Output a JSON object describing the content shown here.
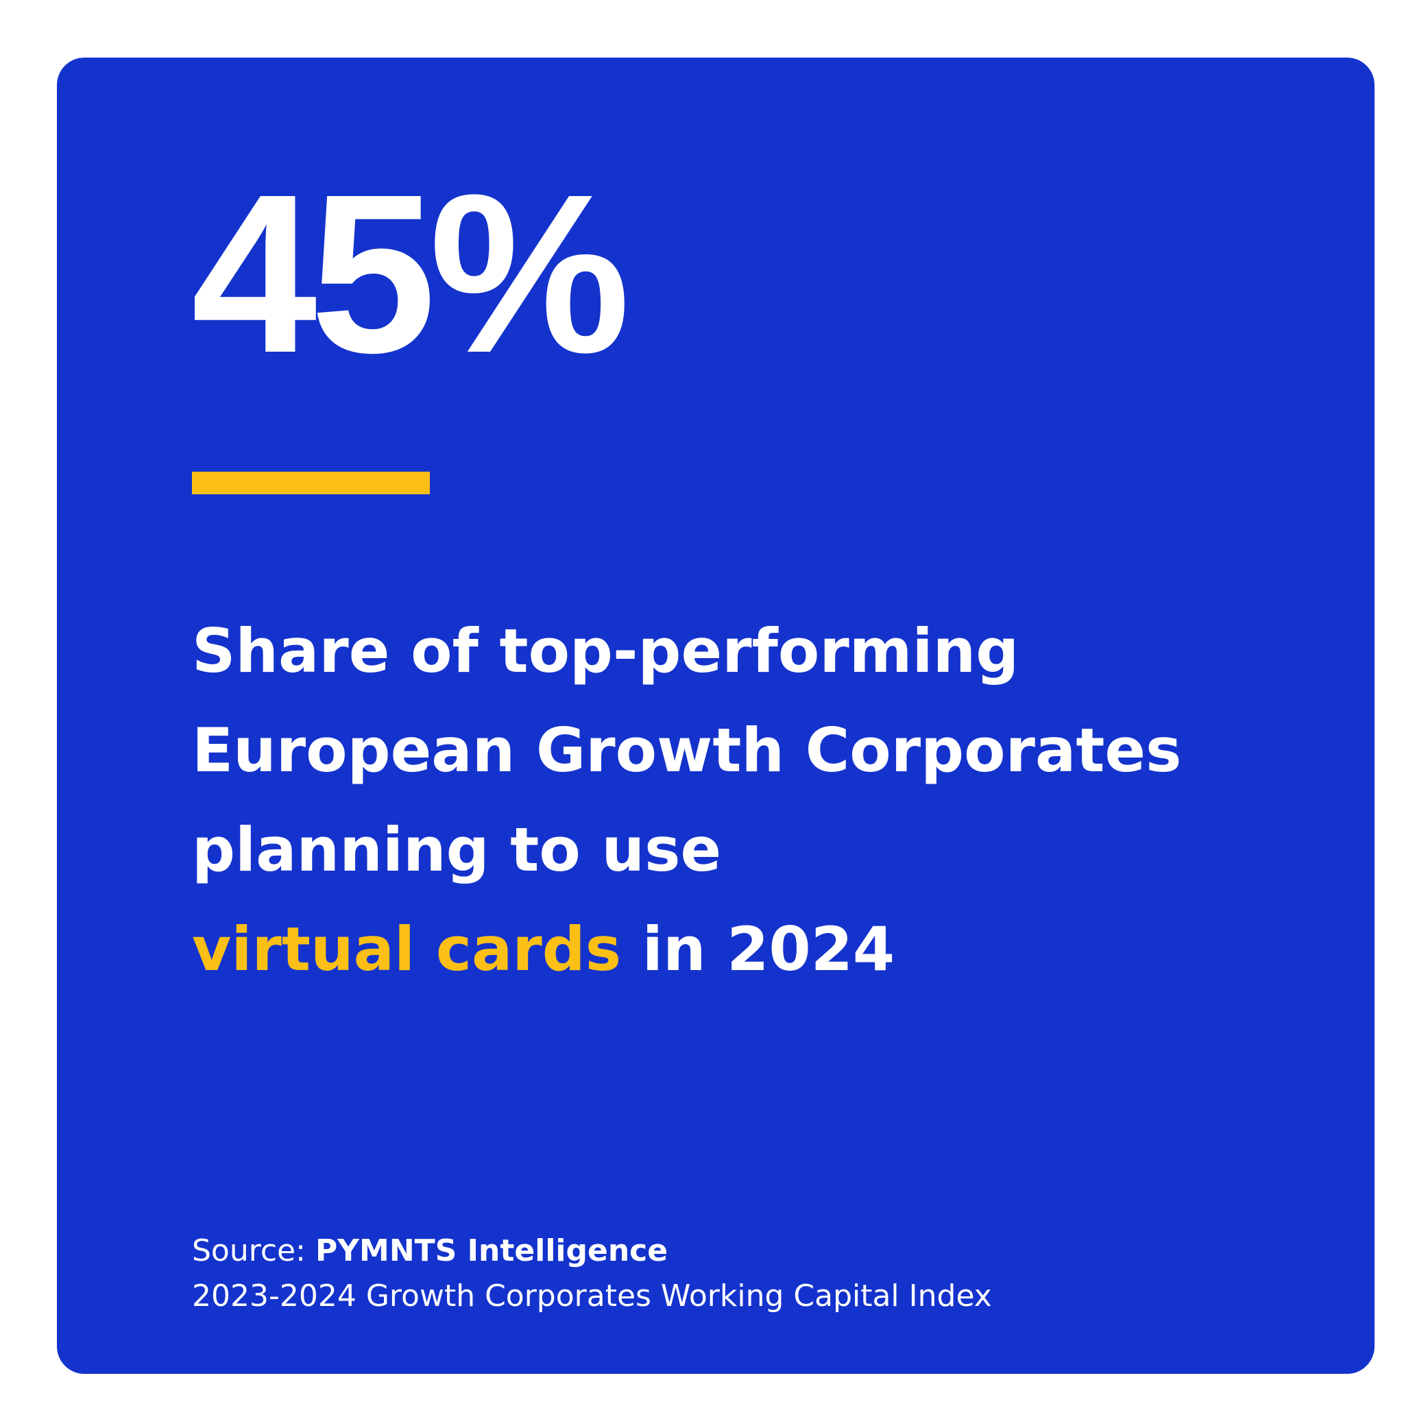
{
  "colors": {
    "background": "#1433CC",
    "accent": "#FBBF16",
    "text": "#FFFFFF"
  },
  "stat": {
    "value": "45%"
  },
  "headline": {
    "line1": "Share of top-performing",
    "line2": "European Growth Corporates",
    "line3": "planning to use",
    "highlight": "virtual cards",
    "line4_rest": " in 2024"
  },
  "source": {
    "label": "Source: ",
    "org": "PYMNTS Intelligence",
    "report": "2023-2024 Growth Corporates Working Capital Index"
  }
}
